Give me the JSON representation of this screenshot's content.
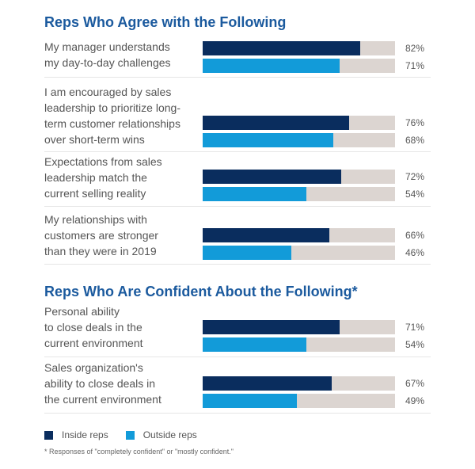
{
  "colors": {
    "inside": "#0a2d5e",
    "outside": "#129bd9",
    "track": "#dcd5d1",
    "heading": "#1b5a9e"
  },
  "chart_data": {
    "type": "bar",
    "orientation": "horizontal",
    "xlim": [
      0,
      100
    ],
    "unit": "%",
    "legend": {
      "placement": "bottom-left",
      "entries": [
        "Inside reps",
        "Outside reps"
      ]
    },
    "footnote": "* Responses of \"completely confident\" or \"mostly confident.\"",
    "sections": [
      {
        "title": "Reps Who Agree with the Following",
        "categories": [
          "My manager understands my day-to-day challenges",
          "I am encouraged by sales leadership to prioritize long-term customer relationships over short-term wins",
          "Expectations from sales leadership match the current selling reality",
          "My relationships with customers are stronger than they were in 2019"
        ],
        "series": [
          {
            "name": "Inside reps",
            "values": [
              82,
              76,
              72,
              66
            ]
          },
          {
            "name": "Outside reps",
            "values": [
              71,
              68,
              54,
              46
            ]
          }
        ]
      },
      {
        "title": "Reps Who Are Confident About the Following*",
        "categories": [
          "Personal ability to close deals in the current environment",
          "Sales organization's ability to close deals in the current environment"
        ],
        "series": [
          {
            "name": "Inside reps",
            "values": [
              71,
              67
            ]
          },
          {
            "name": "Outside reps",
            "values": [
              54,
              49
            ]
          }
        ]
      }
    ]
  },
  "view": {
    "headings": [
      "Reps Who Agree with the Following",
      "Reps Who Are Confident About the Following*"
    ],
    "rows": [
      {
        "lines": [
          "My manager understands",
          "my day-to-day challenges"
        ],
        "inside": 82,
        "outside": 71,
        "inside_label": "82%",
        "outside_label": "71%"
      },
      {
        "lines": [
          "I am encouraged by sales",
          "leadership to prioritize long-",
          "term customer relationships",
          "over short-term wins"
        ],
        "inside": 76,
        "outside": 68,
        "inside_label": "76%",
        "outside_label": "68%"
      },
      {
        "lines": [
          "Expectations from sales",
          "leadership match the",
          "current selling reality"
        ],
        "inside": 72,
        "outside": 54,
        "inside_label": "72%",
        "outside_label": "54%"
      },
      {
        "lines": [
          "My relationships with",
          "customers are stronger",
          "than they were in 2019"
        ],
        "inside": 66,
        "outside": 46,
        "inside_label": "66%",
        "outside_label": "46%"
      },
      {
        "lines": [
          "Personal ability",
          "to close deals in the",
          "current environment"
        ],
        "inside": 71,
        "outside": 54,
        "inside_label": "71%",
        "outside_label": "54%"
      },
      {
        "lines": [
          "Sales organization's",
          "ability to close deals in",
          "the current environment"
        ],
        "inside": 67,
        "outside": 49,
        "inside_label": "67%",
        "outside_label": "49%"
      }
    ],
    "legend": {
      "inside": "Inside reps",
      "outside": "Outside reps"
    },
    "footnote": "* Responses of \"completely confident\" or \"mostly confident.\""
  }
}
